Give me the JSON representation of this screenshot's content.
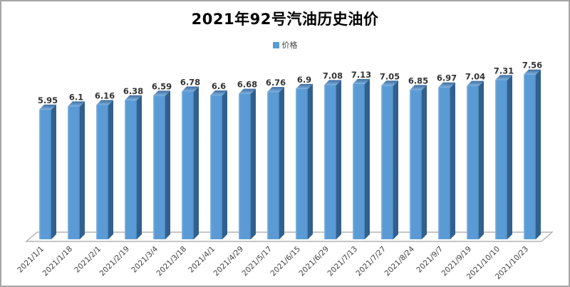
{
  "chart_data": {
    "type": "bar",
    "style": "3d-column",
    "title": "2021年92号汽油历史油价",
    "legend": "价格",
    "legend_position": "top-center",
    "xlabel": "",
    "ylabel": "",
    "ylim": [
      0,
      8
    ],
    "grid": false,
    "categories": [
      "2021/1/1",
      "2021/1/18",
      "2021/2/1",
      "2021/2/19",
      "2021/3/4",
      "2021/3/18",
      "2021/4/1",
      "2021/4/29",
      "2021/5/17",
      "2021/6/15",
      "2021/6/29",
      "2021/7/13",
      "2021/7/27",
      "2021/8/24",
      "2021/9/7",
      "2021/9/19",
      "2021/10/10",
      "2021/10/23"
    ],
    "values": [
      5.95,
      6.1,
      6.16,
      6.38,
      6.59,
      6.78,
      6.6,
      6.68,
      6.76,
      6.9,
      7.08,
      7.13,
      7.05,
      6.85,
      6.97,
      7.04,
      7.31,
      7.56
    ],
    "data_labels_shown": true,
    "colors": {
      "bar_front": "#5b9bd5",
      "bar_front_highlight": "#8fbce4",
      "bar_front_shade": "#4a84b8",
      "bar_side": "#31608f",
      "bar_top_front": "#7fb0df",
      "bar_top_back": "#3e6d9e",
      "value_label": "#333333",
      "axis_label": "#404040",
      "floor_stroke": "#b3b3b3",
      "frame_border": "#a6a6a6"
    }
  }
}
